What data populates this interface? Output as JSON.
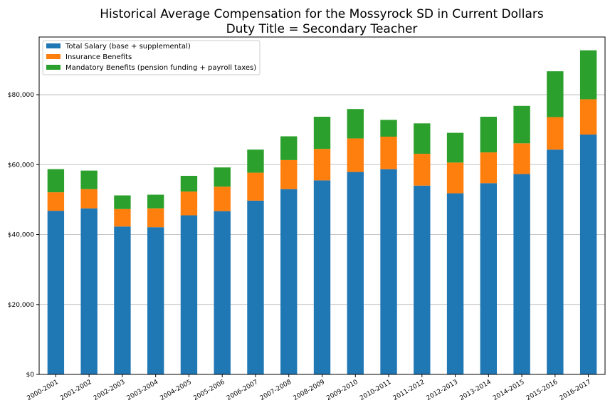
{
  "chart_data": {
    "type": "bar",
    "stacked": true,
    "title": "Historical Average Compensation for the Mossyrock SD in Current Dollars",
    "subtitle": "Duty Title = Secondary Teacher",
    "xlabel": "",
    "ylabel": "",
    "ylim": [
      0,
      96500
    ],
    "yticks": [
      0,
      20000,
      40000,
      60000,
      80000
    ],
    "ytick_labels": [
      "$0",
      "$20,000",
      "$40,000",
      "$60,000",
      "$80,000"
    ],
    "grid": "horizontal",
    "legend_position": "top-left",
    "categories": [
      "2000-2001",
      "2001-2002",
      "2002-2003",
      "2003-2004",
      "2004-2005",
      "2005-2006",
      "2006-2007",
      "2007-2008",
      "2008-2009",
      "2009-2010",
      "2010-2011",
      "2011-2012",
      "2012-2013",
      "2013-2014",
      "2014-2015",
      "2015-2016",
      "2016-2017"
    ],
    "series": [
      {
        "name": "Total Salary (base + supplemental)",
        "color": "#1f77b4",
        "values": [
          46800,
          47500,
          42300,
          42100,
          45500,
          46700,
          49700,
          53000,
          55500,
          57900,
          58700,
          54000,
          51800,
          54700,
          57300,
          64300,
          68600
        ]
      },
      {
        "name": "Insurance Benefits",
        "color": "#ff7f0e",
        "values": [
          5300,
          5500,
          5000,
          5400,
          6800,
          7000,
          8000,
          8300,
          9000,
          9600,
          9300,
          9100,
          8800,
          8800,
          8800,
          9300,
          10100
        ]
      },
      {
        "name": "Mandatory Benefits (pension funding + payroll taxes)",
        "color": "#2ca02c",
        "values": [
          6600,
          5300,
          3900,
          3900,
          4500,
          5500,
          6600,
          6800,
          9200,
          8400,
          4800,
          8700,
          8500,
          10200,
          10700,
          13100,
          14000
        ]
      }
    ]
  }
}
